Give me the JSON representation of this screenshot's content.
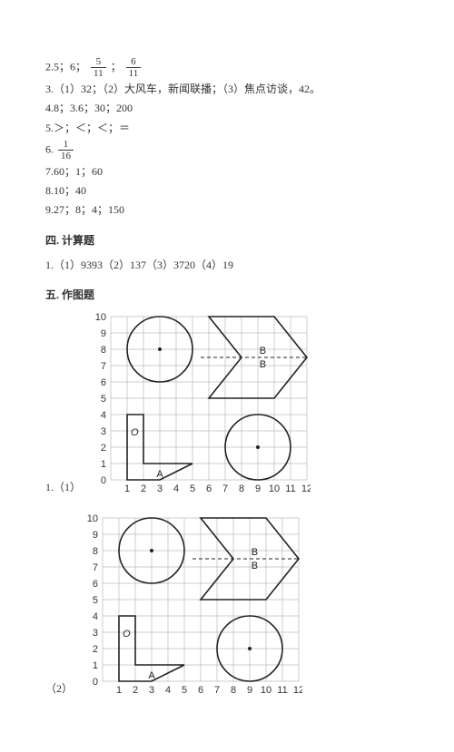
{
  "answers": {
    "l1_prefix": "2.5；6；",
    "l1_frac1_num": "5",
    "l1_frac1_den": "11",
    "l1_mid": "；",
    "l1_frac2_num": "6",
    "l1_frac2_den": "11",
    "l2": "3.（1）32；（2）大风车，新闻联播；（3）焦点访谈，42。",
    "l3": "4.8；3.6；30；200",
    "l4": "5.＞；＜；＜；＝",
    "l5_prefix": "6.",
    "l5_frac_num": "1",
    "l5_frac_den": "16",
    "l6": "7.60；1；60",
    "l7": "8.10；40",
    "l8": "9.27；8；4；150"
  },
  "sections": {
    "calc_title": "四. 计算题",
    "calc_line": "1.（1）9393（2）137（3）3720（4）19",
    "draw_title": "五. 作图题",
    "fig1_label": "1.（1）",
    "fig2_label": "（2）"
  },
  "grid": {
    "cell": 18,
    "cols": 12,
    "rows": 10,
    "x_labels": [
      "1",
      "2",
      "3",
      "4",
      "5",
      "6",
      "7",
      "8",
      "9",
      "10",
      "11",
      "12"
    ],
    "y_labels": [
      "0",
      "1",
      "2",
      "3",
      "4",
      "5",
      "6",
      "7",
      "8",
      "9",
      "10"
    ],
    "grid_color": "#bbbbbb",
    "stroke_color": "#222222",
    "label_color": "#333333",
    "label_font": "11px sans-serif",
    "label_A": "A",
    "label_O": "O",
    "label_B": "B"
  }
}
